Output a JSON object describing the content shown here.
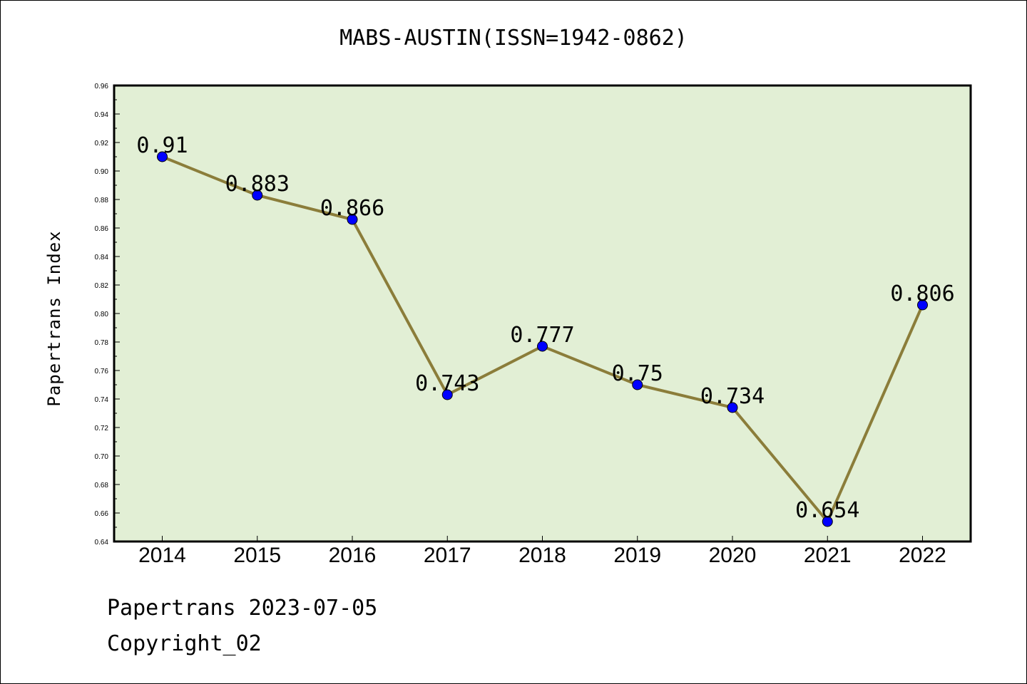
{
  "chart_data": {
    "type": "line",
    "title": "MABS-AUSTIN(ISSN=1942-0862)",
    "xlabel": "",
    "ylabel": "Papertrans Index",
    "categories": [
      "2014",
      "2015",
      "2016",
      "2017",
      "2018",
      "2019",
      "2020",
      "2021",
      "2022"
    ],
    "values": [
      0.91,
      0.883,
      0.866,
      0.743,
      0.777,
      0.75,
      0.734,
      0.654,
      0.806
    ],
    "data_labels": [
      "0.91",
      "0.883",
      "0.866",
      "0.743",
      "0.777",
      "0.75",
      "0.734",
      "0.654",
      "0.806"
    ],
    "ylim": [
      0.64,
      0.96
    ],
    "yticks": [
      "0.64",
      "0.66",
      "0.68",
      "0.70",
      "0.72",
      "0.74",
      "0.76",
      "0.78",
      "0.80",
      "0.82",
      "0.84",
      "0.86",
      "0.88",
      "0.90",
      "0.92",
      "0.94",
      "0.96"
    ],
    "grid": false,
    "colors": {
      "line": "#8b7d3a",
      "marker": "#0000ff",
      "plot_bg": "#e2efd5"
    }
  },
  "footer": {
    "line1": "Papertrans 2023-07-05",
    "line2": "Copyright_02"
  }
}
